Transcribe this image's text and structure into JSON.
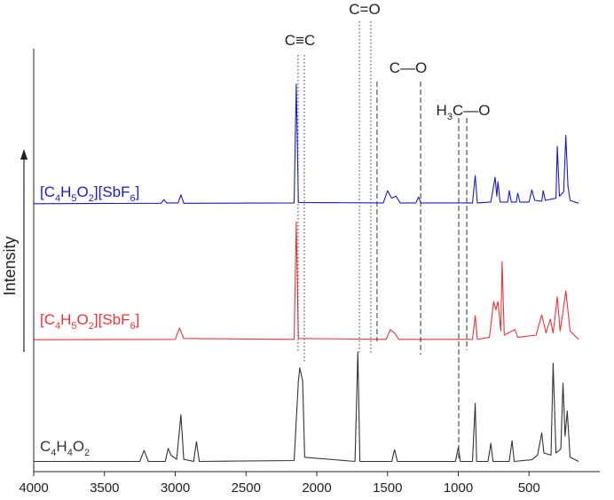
{
  "chart_data": {
    "type": "line",
    "y_label": "Intensity",
    "xlim": [
      4000,
      0
    ],
    "ylim": [
      0,
      100
    ],
    "xticks": [
      4000,
      3500,
      3000,
      2500,
      2000,
      1500,
      1000,
      500
    ],
    "series": [
      {
        "name": "C4H4O2",
        "color": "#333333",
        "x": [
          4000,
          3250,
          3220,
          3190,
          3070,
          3050,
          3030,
          2990,
          2960,
          2940,
          2870,
          2850,
          2830,
          2160,
          2130,
          2120,
          2100,
          2085,
          1730,
          1710,
          1695,
          1470,
          1450,
          1430,
          1020,
          1000,
          985,
          900,
          880,
          870,
          790,
          770,
          755,
          640,
          620,
          605,
          480,
          440,
          410,
          395,
          345,
          330,
          310,
          275,
          260,
          245,
          230,
          210,
          150
        ],
        "values": [
          2.0,
          2.0,
          4.6,
          2.0,
          2.0,
          5.1,
          3.5,
          2.5,
          13.1,
          2.5,
          2.0,
          6.7,
          2.0,
          2.2,
          21.1,
          24.2,
          21.1,
          3.0,
          2.0,
          28.0,
          2.0,
          2.0,
          4.8,
          2.0,
          2.0,
          5.3,
          2.0,
          2.0,
          15.8,
          2.0,
          2.0,
          6.3,
          2.0,
          2.0,
          6.9,
          2.0,
          2.4,
          3.5,
          8.8,
          4.0,
          3.5,
          25.3,
          4.0,
          5.0,
          20.6,
          8.0,
          14.0,
          3.0,
          2.0
        ]
      },
      {
        "name": "[C4H5O2][SbF6]",
        "color": "#e8333a",
        "x": [
          4000,
          3000,
          2970,
          2940,
          2160,
          2145,
          2130,
          1510,
          1480,
          1450,
          1420,
          900,
          880,
          865,
          780,
          750,
          735,
          720,
          700,
          690,
          675,
          600,
          580,
          450,
          410,
          380,
          350,
          330,
          300,
          280,
          250,
          240,
          210,
          150
        ],
        "values": [
          30.9,
          31.0,
          33.7,
          31.2,
          31.0,
          58.9,
          31.2,
          31.0,
          33.3,
          32.5,
          31.0,
          31.0,
          36.6,
          31.0,
          31.5,
          40.0,
          38.0,
          40.0,
          33.0,
          49.5,
          32.0,
          33.3,
          31.5,
          32.0,
          36.8,
          32.5,
          35.8,
          32.5,
          41.1,
          33.0,
          40.0,
          42.5,
          33.0,
          31.0
        ]
      },
      {
        "name": "[C4H5O2][SbF6]",
        "color": "#1a1acc",
        "x": [
          4000,
          3100,
          3080,
          3060,
          2980,
          2960,
          2940,
          2160,
          2145,
          2130,
          1530,
          1500,
          1470,
          1440,
          1410,
          1300,
          1280,
          1265,
          900,
          880,
          865,
          770,
          740,
          728,
          720,
          705,
          650,
          640,
          625,
          590,
          580,
          565,
          500,
          480,
          460,
          410,
          400,
          385,
          310,
          300,
          285,
          255,
          240,
          225,
          210,
          150
        ],
        "values": [
          63.2,
          63.3,
          64.2,
          63.4,
          63.4,
          65.3,
          63.3,
          63.4,
          91.6,
          63.5,
          63.4,
          66.3,
          64.5,
          65.0,
          63.4,
          63.4,
          64.8,
          63.4,
          63.4,
          69.9,
          63.4,
          63.6,
          69.5,
          65.0,
          68.4,
          63.6,
          63.6,
          66.3,
          63.6,
          63.6,
          65.7,
          63.6,
          63.6,
          66.5,
          64.0,
          63.8,
          66.3,
          64.0,
          64.5,
          76.8,
          65.0,
          66.0,
          79.4,
          67.4,
          64.0,
          63.3
        ]
      }
    ],
    "annotations": [
      {
        "text": "C≡C",
        "x": [
          2132,
          2088
        ],
        "style": "dotted"
      },
      {
        "text": "C=O",
        "x": [
          1699,
          1618
        ],
        "style": "dotted"
      },
      {
        "text": "C—O",
        "x": [
          1574,
          1266
        ],
        "style": "dashed"
      },
      {
        "text": "H3C—O",
        "x": [
          997,
          940
        ],
        "style": "dashed"
      }
    ]
  }
}
